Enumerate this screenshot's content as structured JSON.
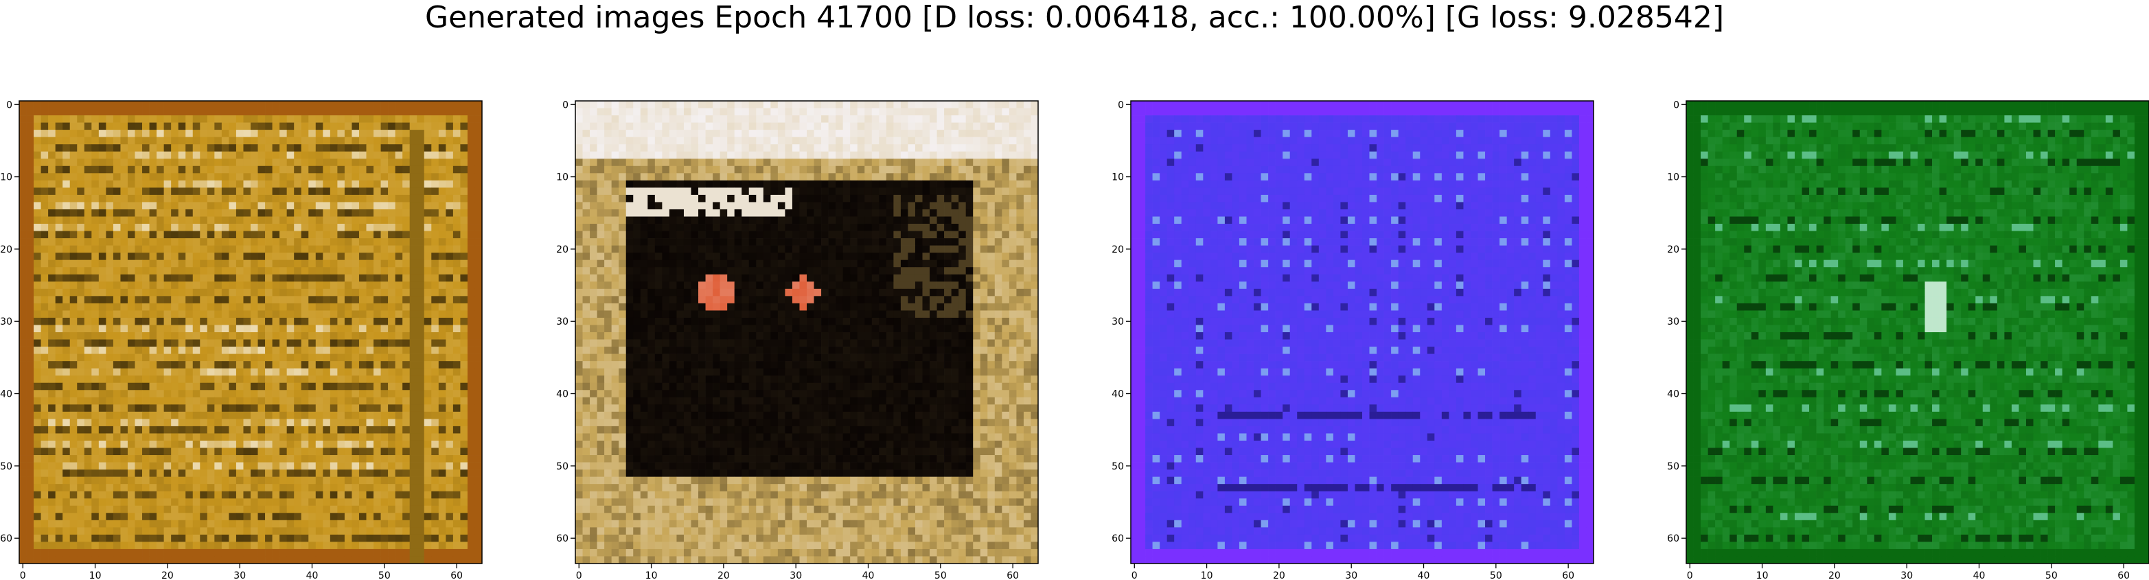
{
  "title": "Generated images Epoch 41700 [D loss: 0.006418, acc.: 100.00%] [G loss: 9.028542]",
  "chart_data": [
    {
      "type": "heatmap",
      "panel": 1,
      "content": "image",
      "palette": "amber",
      "colors": {
        "base": "#c8961e",
        "dark": "#3a2a08",
        "light": "#f0e2c0",
        "edge": "#a65c10"
      },
      "xlim": [
        0,
        63
      ],
      "ylim": [
        63,
        0
      ],
      "xticks": [
        "0",
        "10",
        "20",
        "30",
        "40",
        "50",
        "60"
      ],
      "yticks": [
        "0",
        "10",
        "20",
        "30",
        "40",
        "50",
        "60"
      ],
      "grid": false
    },
    {
      "type": "heatmap",
      "panel": 2,
      "content": "image",
      "palette": "tan-dark",
      "colors": {
        "base": "#c9a85a",
        "dark": "#0a0503",
        "light": "#f4f0f0",
        "accent": "#e0603a"
      },
      "xlim": [
        0,
        63
      ],
      "ylim": [
        63,
        0
      ],
      "xticks": [
        "0",
        "10",
        "20",
        "30",
        "40",
        "50",
        "60"
      ],
      "yticks": [
        "0",
        "10",
        "20",
        "30",
        "40",
        "50",
        "60"
      ],
      "grid": false
    },
    {
      "type": "heatmap",
      "panel": 3,
      "content": "image",
      "palette": "blue",
      "colors": {
        "base": "#4f3cf2",
        "dark": "#1a1070",
        "light": "#9ce0f0",
        "edge": "#7a30ff"
      },
      "xlim": [
        0,
        63
      ],
      "ylim": [
        63,
        0
      ],
      "xticks": [
        "0",
        "10",
        "20",
        "30",
        "40",
        "50",
        "60"
      ],
      "yticks": [
        "0",
        "10",
        "20",
        "30",
        "40",
        "50",
        "60"
      ],
      "grid": false
    },
    {
      "type": "heatmap",
      "panel": 4,
      "content": "image",
      "palette": "green",
      "colors": {
        "base": "#12801a",
        "dark": "#032a06",
        "light": "#8ee8d0",
        "edge": "#0a6a10"
      },
      "xlim": [
        0,
        63
      ],
      "ylim": [
        63,
        0
      ],
      "xticks": [
        "0",
        "10",
        "20",
        "30",
        "40",
        "50",
        "60"
      ],
      "yticks": [
        "0",
        "10",
        "20",
        "30",
        "40",
        "50",
        "60"
      ],
      "grid": false
    }
  ]
}
